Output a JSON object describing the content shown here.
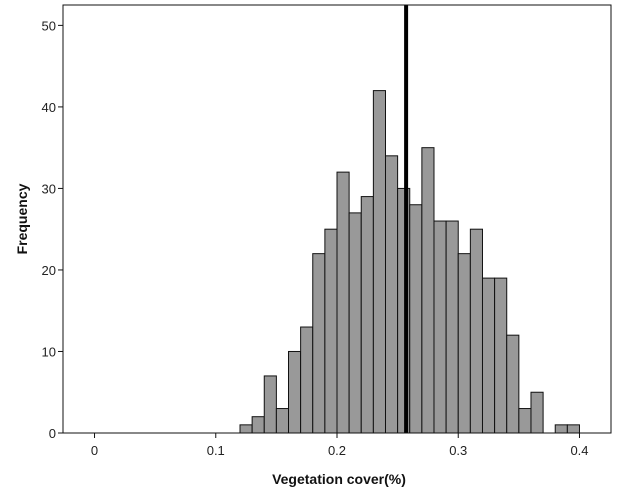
{
  "chart_data": {
    "type": "bar",
    "subtype": "histogram",
    "xlabel": "Vegetation cover(%)",
    "ylabel": "Frequency",
    "xlim": [
      -0.026,
      0.426
    ],
    "ylim": [
      0,
      52.5
    ],
    "x_ticks": [
      0,
      0.1,
      0.2,
      0.3,
      0.4
    ],
    "x_tick_labels": [
      "0",
      "0.1",
      "0.2",
      "0.3",
      "0.4"
    ],
    "y_ticks": [
      0,
      10,
      20,
      30,
      40,
      50
    ],
    "y_tick_labels": [
      "0",
      "10",
      "20",
      "30",
      "40",
      "50"
    ],
    "bin_width": 0.01,
    "bin_starts": [
      0.12,
      0.13,
      0.14,
      0.15,
      0.16,
      0.17,
      0.18,
      0.19,
      0.2,
      0.21,
      0.22,
      0.23,
      0.24,
      0.25,
      0.26,
      0.27,
      0.28,
      0.29,
      0.3,
      0.31,
      0.32,
      0.33,
      0.34,
      0.35,
      0.36,
      0.37,
      0.38,
      0.39
    ],
    "values": [
      1,
      2,
      7,
      3,
      10,
      13,
      22,
      25,
      32,
      27,
      29,
      42,
      34,
      30,
      28,
      35,
      26,
      26,
      22,
      25,
      19,
      19,
      12,
      3,
      5,
      0,
      1,
      1
    ],
    "reference_line_x": 0.257,
    "bar_color": "#999999",
    "bar_edge_color": "#111111",
    "reference_line_color": "#000000",
    "grid": false
  }
}
